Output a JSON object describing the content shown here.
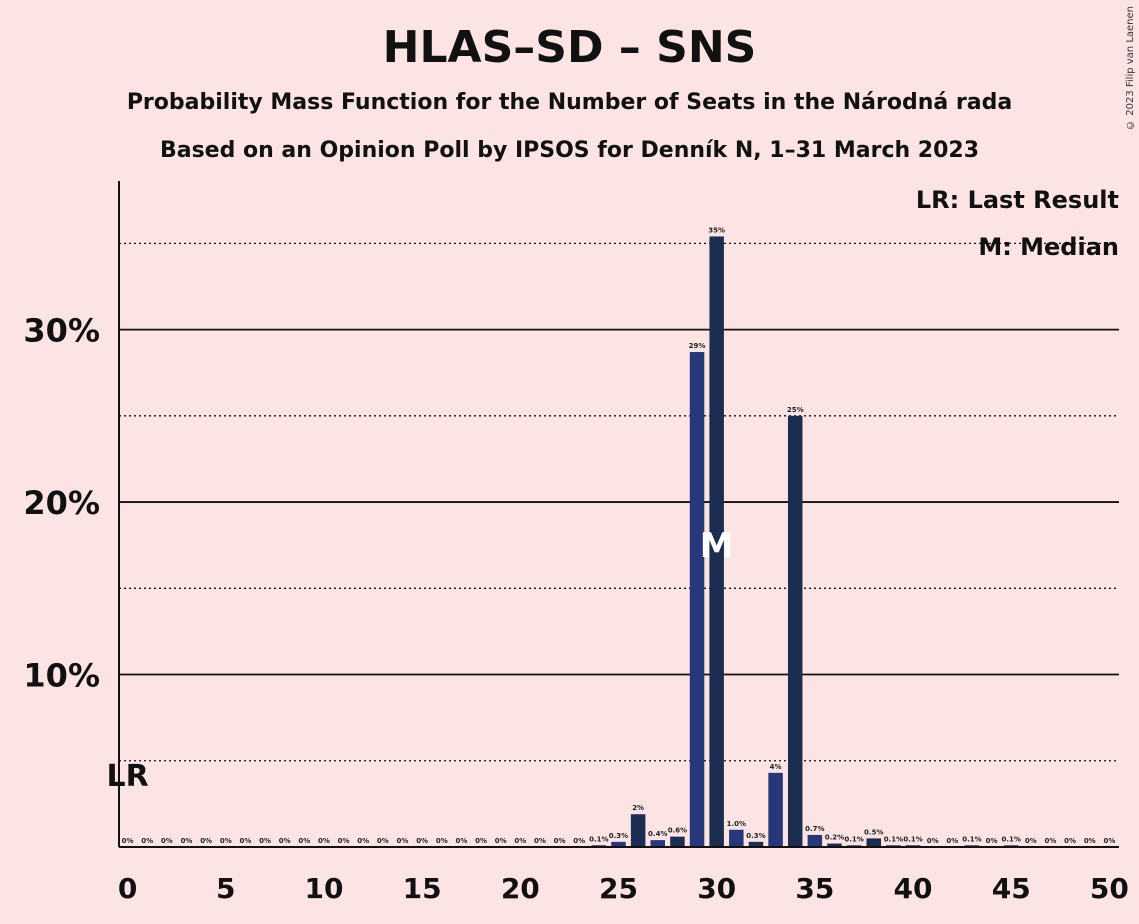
{
  "title": "HLAS–SD – SNS",
  "subtitle1": "Probability Mass Function for the Number of Seats in the Národná rada",
  "subtitle2": "Based on an Opinion Poll by IPSOS for Denník N, 1–31 March 2023",
  "copyright": "© 2023 Filip van Laenen",
  "legend": {
    "last_result": "LR: Last Result",
    "median": "M: Median"
  },
  "colors": {
    "background": "#fde4e4",
    "bar_light": "#26387a",
    "bar_dark": "#1c2d52"
  },
  "chart_data": {
    "type": "bar",
    "x": [
      0,
      1,
      2,
      3,
      4,
      5,
      6,
      7,
      8,
      9,
      10,
      11,
      12,
      13,
      14,
      15,
      16,
      17,
      18,
      19,
      20,
      21,
      22,
      23,
      24,
      25,
      26,
      27,
      28,
      29,
      30,
      31,
      32,
      33,
      34,
      35,
      36,
      37,
      38,
      39,
      40,
      41,
      42,
      43,
      44,
      45,
      46,
      47,
      48,
      49,
      50
    ],
    "values": [
      0,
      0,
      0,
      0,
      0,
      0,
      0,
      0,
      0,
      0,
      0,
      0,
      0,
      0,
      0,
      0,
      0,
      0,
      0,
      0,
      0,
      0,
      0,
      0,
      0.1,
      0.3,
      1.9,
      0.4,
      0.6,
      28.7,
      35.4,
      1.0,
      0.3,
      4.3,
      25.0,
      0.7,
      0.2,
      0.1,
      0.5,
      0.1,
      0.1,
      0,
      0,
      0.1,
      0,
      0.1,
      0,
      0,
      0,
      0,
      0
    ],
    "labels": [
      "0%",
      "0%",
      "0%",
      "0%",
      "0%",
      "0%",
      "0%",
      "0%",
      "0%",
      "0%",
      "0%",
      "0%",
      "0%",
      "0%",
      "0%",
      "0%",
      "0%",
      "0%",
      "0%",
      "0%",
      "0%",
      "0%",
      "0%",
      "0%",
      "0.1%",
      "0.3%",
      "2%",
      "0.4%",
      "0.6%",
      "29%",
      "35%",
      "1.0%",
      "0.3%",
      "4%",
      "25%",
      "0.7%",
      "0.2%",
      "0.1%",
      "0.5%",
      "0.1%",
      "0.1%",
      "0%",
      "0%",
      "0.1%",
      "0%",
      "0.1%",
      "0%",
      "0%",
      "0%",
      "0%",
      "0%"
    ],
    "x_ticks": [
      "0",
      "5",
      "10",
      "15",
      "20",
      "25",
      "30",
      "35",
      "40",
      "45",
      "50"
    ],
    "y_ticks": [
      "10%",
      "20%",
      "30%"
    ],
    "ylim": [
      0,
      38.5
    ],
    "major_grid": [
      10,
      20,
      30
    ],
    "minor_grid": [
      5,
      15,
      25,
      35
    ],
    "last_result": {
      "seat": 0,
      "label": "LR"
    },
    "median": {
      "seat": 30,
      "label": "M"
    }
  }
}
